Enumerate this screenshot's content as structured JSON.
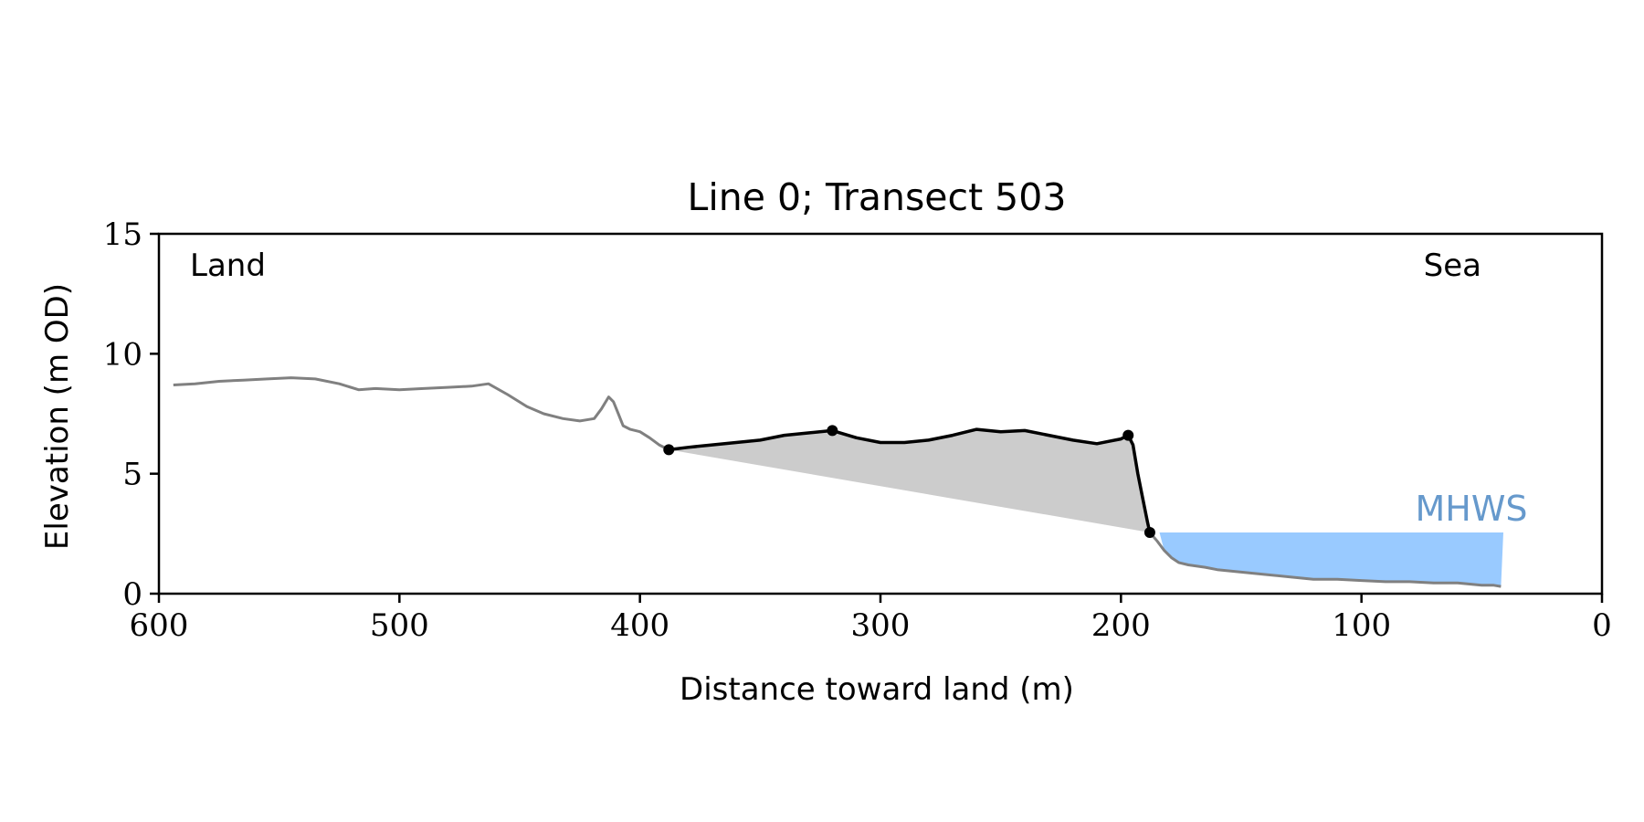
{
  "chart_data": {
    "type": "line",
    "title": "Line 0; Transect 503",
    "xlabel": "Distance toward land (m)",
    "ylabel": "Elevation (m OD)",
    "xlim": [
      600,
      0
    ],
    "ylim": [
      0,
      15
    ],
    "x_ticks": [
      600,
      500,
      400,
      300,
      200,
      100,
      0
    ],
    "y_ticks": [
      0,
      5,
      10,
      15
    ],
    "annotations": {
      "land": "Land",
      "sea": "Sea",
      "mhws": "MHWS"
    },
    "colors": {
      "profile": "#808080",
      "selected": "#000000",
      "fill": "#cccccc",
      "mhws": "#99caff",
      "mhws_text": "#6699cc"
    },
    "profile": {
      "x": [
        594,
        585,
        575,
        565,
        555,
        545,
        535,
        525,
        517,
        510,
        500,
        490,
        480,
        470,
        463,
        455,
        447,
        440,
        432,
        425,
        419,
        416,
        413,
        411,
        409,
        407,
        404,
        400,
        396,
        392,
        388
      ],
      "y": [
        8.7,
        8.75,
        8.85,
        8.9,
        8.95,
        9.0,
        8.95,
        8.75,
        8.5,
        8.55,
        8.5,
        8.55,
        8.6,
        8.65,
        8.75,
        8.3,
        7.8,
        7.5,
        7.3,
        7.2,
        7.3,
        7.7,
        8.2,
        8.0,
        7.5,
        7.0,
        6.85,
        6.75,
        6.5,
        6.2,
        6.0
      ]
    },
    "selected_profile": {
      "x": [
        388,
        380,
        370,
        360,
        350,
        340,
        330,
        320,
        310,
        300,
        290,
        280,
        270,
        260,
        250,
        240,
        230,
        220,
        210,
        205,
        200,
        197,
        195,
        193,
        191,
        189,
        188
      ],
      "y": [
        6.0,
        6.1,
        6.2,
        6.3,
        6.4,
        6.6,
        6.7,
        6.8,
        6.5,
        6.3,
        6.3,
        6.4,
        6.6,
        6.85,
        6.75,
        6.8,
        6.6,
        6.4,
        6.25,
        6.35,
        6.45,
        6.6,
        6.2,
        5.0,
        4.0,
        3.0,
        2.55
      ]
    },
    "seaward_profile": {
      "x": [
        188,
        185,
        182,
        179,
        176,
        172,
        165,
        160,
        150,
        140,
        130,
        120,
        110,
        100,
        90,
        80,
        70,
        60,
        50,
        45,
        42
      ],
      "y": [
        2.55,
        2.2,
        1.8,
        1.5,
        1.3,
        1.2,
        1.1,
        1.0,
        0.9,
        0.8,
        0.7,
        0.6,
        0.6,
        0.55,
        0.5,
        0.5,
        0.45,
        0.45,
        0.35,
        0.35,
        0.3
      ]
    },
    "markers": {
      "x": [
        388,
        320,
        197,
        188
      ],
      "y": [
        6.0,
        6.8,
        6.6,
        2.55
      ]
    },
    "shaded_area": {
      "upper": {
        "x": [
          388,
          380,
          370,
          360,
          350,
          340,
          330,
          320,
          310,
          300,
          290,
          280,
          270,
          260,
          250,
          240,
          230,
          220,
          210,
          205,
          200,
          197,
          195,
          193,
          191,
          189,
          188
        ],
        "y": [
          6.0,
          6.1,
          6.2,
          6.3,
          6.4,
          6.6,
          6.7,
          6.8,
          6.5,
          6.3,
          6.3,
          6.4,
          6.6,
          6.85,
          6.75,
          6.8,
          6.6,
          6.4,
          6.25,
          6.35,
          6.45,
          6.6,
          6.2,
          5.0,
          4.0,
          3.0,
          2.55
        ]
      },
      "lower": {
        "x": [
          388,
          188
        ],
        "y": [
          6.0,
          2.55
        ]
      }
    },
    "mhws": {
      "level": 2.55,
      "x_start": 184,
      "x_end": 41
    }
  }
}
